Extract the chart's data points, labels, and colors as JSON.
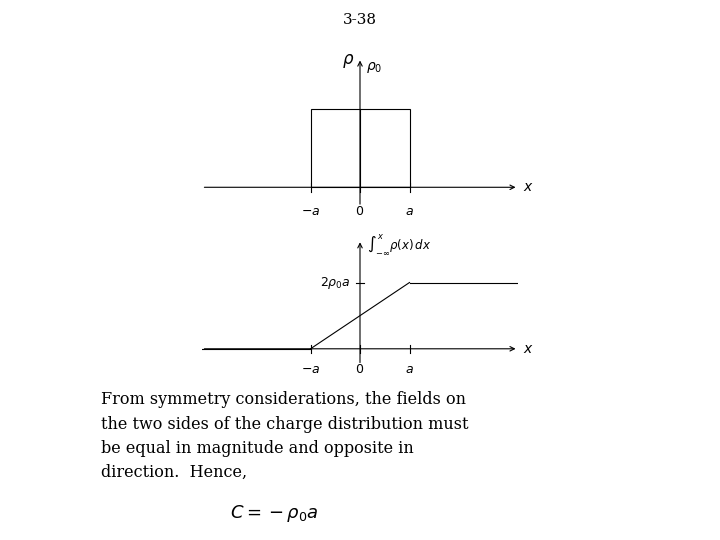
{
  "title": "3-38",
  "background_color": "#ffffff",
  "text_body": "From symmetry considerations, the fields on\nthe two sides of the charge distribution must\nbe equal in magnitude and opposite in\ndirection.  Hence,",
  "formula": "$C = -\\rho_0 a$",
  "top_chart": {
    "xlim": [
      -3.2,
      3.2
    ],
    "ylim": [
      -0.4,
      1.8
    ]
  },
  "bottom_chart": {
    "xlim": [
      -3.2,
      3.2
    ],
    "ylim": [
      -0.4,
      1.8
    ]
  }
}
